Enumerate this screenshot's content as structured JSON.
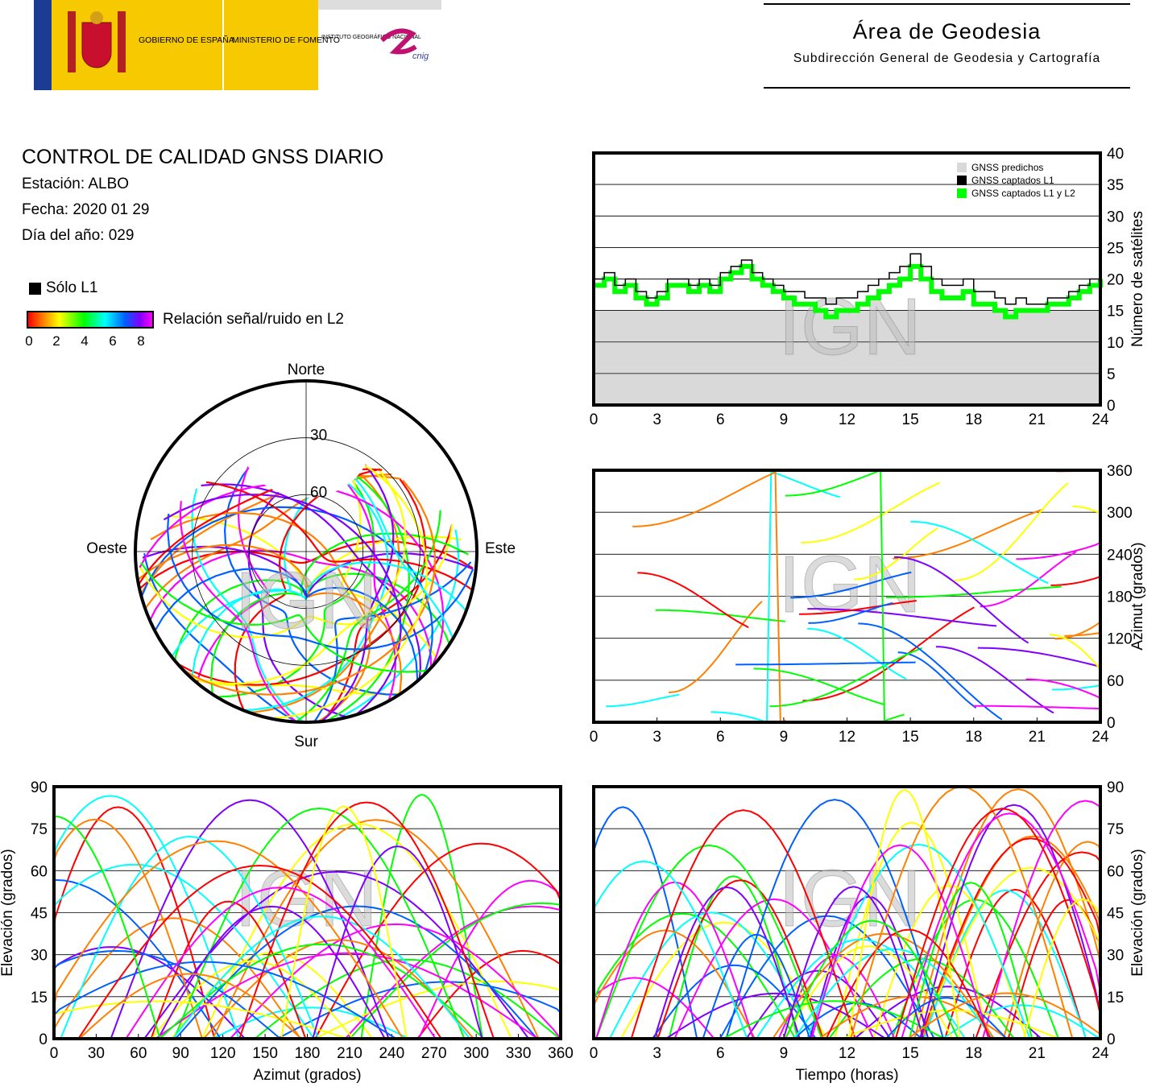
{
  "header": {
    "logos": {
      "gobierno": "GOBIERNO DE ESPAÑA",
      "ministerio": "MINISTERIO DE FOMENTO",
      "instituto": "INSTITUTO GEOGRÁFICO NACIONAL",
      "cnig": "cnig"
    },
    "area_title": "Área de Geodesia",
    "area_subtitle": "Subdirección General de Geodesia y Cartografía"
  },
  "report": {
    "title": "CONTROL DE CALIDAD GNSS DIARIO",
    "station": "Estación: ALBO",
    "date": "Fecha: 2020 01 29",
    "doy": "Día del año: 029"
  },
  "legend": {
    "l1_only": "Sólo L1",
    "snr_label": "Relación señal/ruido en L2",
    "snr_ticks": [
      "0",
      "2",
      "4",
      "6",
      "8"
    ],
    "snr_colors": [
      "#ff0000",
      "#ff8000",
      "#ffff00",
      "#00ff00",
      "#00ffff",
      "#0060ff",
      "#8000ff",
      "#ff00ff"
    ]
  },
  "watermark": "IGN",
  "colors": {
    "predicted": "#d9d9d9",
    "l1": "#000000",
    "l1l2": "#00ff00"
  },
  "chart_data": [
    {
      "id": "count",
      "type": "area",
      "xlabel": "",
      "ylabel": "Número de satélites",
      "xlim": [
        0,
        24
      ],
      "ylim": [
        0,
        40
      ],
      "xticks": [
        0,
        3,
        6,
        9,
        12,
        15,
        18,
        21,
        24
      ],
      "yticks": [
        0,
        5,
        10,
        15,
        20,
        25,
        30,
        35,
        40
      ],
      "grid": true,
      "legend_position": "top-right",
      "series": [
        {
          "name": "GNSS predichos",
          "color": "#d9d9d9",
          "x": [
            0,
            0.5,
            1,
            1.5,
            2,
            2.5,
            3,
            3.5,
            4,
            4.5,
            5,
            5.5,
            6,
            6.5,
            7,
            7.5,
            8,
            8.5,
            9,
            9.5,
            10,
            10.5,
            11,
            11.5,
            12,
            12.5,
            13,
            13.5,
            14,
            14.5,
            15,
            15.5,
            16,
            16.5,
            17,
            17.5,
            18,
            18.5,
            19,
            19.5,
            20,
            20.5,
            21,
            21.5,
            22,
            22.5,
            23,
            23.5,
            24
          ],
          "values": [
            15,
            15,
            15,
            15,
            15,
            15,
            15,
            15,
            15,
            15,
            15,
            15,
            15,
            15,
            15,
            15,
            15,
            15,
            15,
            15,
            15,
            15,
            15,
            15,
            15,
            15,
            15,
            15,
            15,
            15,
            15,
            15,
            15,
            15,
            15,
            15,
            15,
            15,
            15,
            15,
            15,
            15,
            15,
            15,
            15,
            15,
            15,
            15,
            15
          ]
        },
        {
          "name": "GNSS captados L1",
          "color": "#000000",
          "x": [
            0,
            0.5,
            1,
            1.5,
            2,
            2.5,
            3,
            3.5,
            4,
            4.5,
            5,
            5.5,
            6,
            6.5,
            7,
            7.5,
            8,
            8.5,
            9,
            9.5,
            10,
            10.5,
            11,
            11.5,
            12,
            12.5,
            13,
            13.5,
            14,
            14.5,
            15,
            15.5,
            16,
            16.5,
            17,
            17.5,
            18,
            18.5,
            19,
            19.5,
            20,
            20.5,
            21,
            21.5,
            22,
            22.5,
            23,
            23.5,
            24
          ],
          "values": [
            20,
            21,
            19,
            20,
            18,
            17,
            18,
            20,
            20,
            19,
            20,
            19,
            21,
            22,
            23,
            21,
            20,
            19,
            18,
            18,
            17,
            17,
            16,
            17,
            17,
            18,
            19,
            20,
            21,
            22,
            24,
            22,
            20,
            19,
            19,
            20,
            18,
            18,
            17,
            16,
            17,
            16,
            16,
            17,
            17,
            18,
            19,
            20,
            21
          ]
        },
        {
          "name": "GNSS captados L1 y L2",
          "color": "#00ff00",
          "x": [
            0,
            0.5,
            1,
            1.5,
            2,
            2.5,
            3,
            3.5,
            4,
            4.5,
            5,
            5.5,
            6,
            6.5,
            7,
            7.5,
            8,
            8.5,
            9,
            9.5,
            10,
            10.5,
            11,
            11.5,
            12,
            12.5,
            13,
            13.5,
            14,
            14.5,
            15,
            15.5,
            16,
            16.5,
            17,
            17.5,
            18,
            18.5,
            19,
            19.5,
            20,
            20.5,
            21,
            21.5,
            22,
            22.5,
            23,
            23.5,
            24
          ],
          "values": [
            19,
            20,
            18,
            19,
            17,
            16,
            17,
            19,
            19,
            18,
            19,
            18,
            20,
            21,
            22,
            20,
            19,
            18,
            17,
            16,
            16,
            15,
            14,
            15,
            15,
            16,
            17,
            18,
            19,
            20,
            22,
            20,
            18,
            17,
            17,
            18,
            16,
            16,
            15,
            14,
            15,
            15,
            15,
            16,
            16,
            17,
            18,
            19,
            20
          ]
        }
      ]
    },
    {
      "id": "azimuth-time",
      "type": "scatter",
      "xlabel": "",
      "ylabel": "Azimut (grados)",
      "xlim": [
        0,
        24
      ],
      "ylim": [
        0,
        360
      ],
      "xticks": [
        0,
        3,
        6,
        9,
        12,
        15,
        18,
        21,
        24
      ],
      "yticks": [
        0,
        60,
        120,
        180,
        240,
        300,
        360
      ],
      "grid": true
    },
    {
      "id": "skyplot",
      "type": "scatter",
      "directions": {
        "north": "Norte",
        "south": "Sur",
        "east": "Este",
        "west": "Oeste"
      },
      "ring_labels": [
        "30",
        "60"
      ]
    },
    {
      "id": "elev-azimuth",
      "type": "scatter",
      "xlabel": "Azimut (grados)",
      "ylabel": "Elevación (grados)",
      "xlim": [
        0,
        360
      ],
      "ylim": [
        0,
        90
      ],
      "xticks": [
        0,
        30,
        60,
        90,
        120,
        150,
        180,
        210,
        240,
        270,
        300,
        330,
        360
      ],
      "yticks": [
        0,
        15,
        30,
        45,
        60,
        75,
        90
      ],
      "grid": true
    },
    {
      "id": "elev-time",
      "type": "scatter",
      "xlabel": "Tiempo (horas)",
      "ylabel": "Elevación (grados)",
      "xlim": [
        0,
        24
      ],
      "ylim": [
        0,
        90
      ],
      "xticks": [
        0,
        3,
        6,
        9,
        12,
        15,
        18,
        21,
        24
      ],
      "yticks": [
        0,
        15,
        30,
        45,
        60,
        75,
        90
      ],
      "grid": true
    }
  ]
}
